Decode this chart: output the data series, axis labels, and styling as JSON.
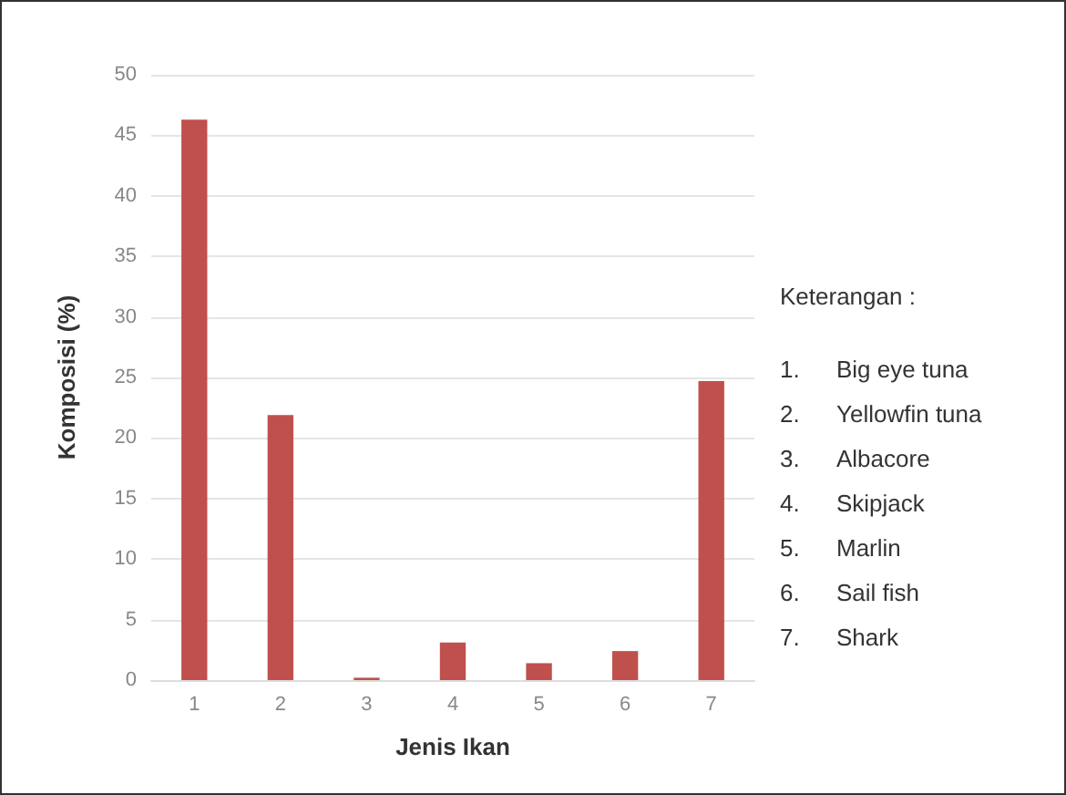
{
  "chart_data": {
    "type": "bar",
    "xlabel": "Jenis Ikan",
    "ylabel": "Komposisi (%)",
    "categories": [
      "1",
      "2",
      "3",
      "4",
      "5",
      "6",
      "7"
    ],
    "values": [
      46.3,
      21.9,
      0.2,
      3.1,
      1.4,
      2.4,
      24.7
    ],
    "color": "#c0504d",
    "ylim": [
      0,
      50
    ],
    "yticks": [
      0,
      5,
      10,
      15,
      20,
      25,
      30,
      35,
      40,
      45,
      50
    ],
    "grid": "y",
    "annotations": [
      "Keterangan :",
      "1.\tBig eye tuna",
      "2.\tYellowfin tuna",
      "3.\tAlbacore",
      "4.\tSkipjack",
      "5.\tMarlin",
      "6.\tSail fish",
      "7.\tShark"
    ]
  }
}
